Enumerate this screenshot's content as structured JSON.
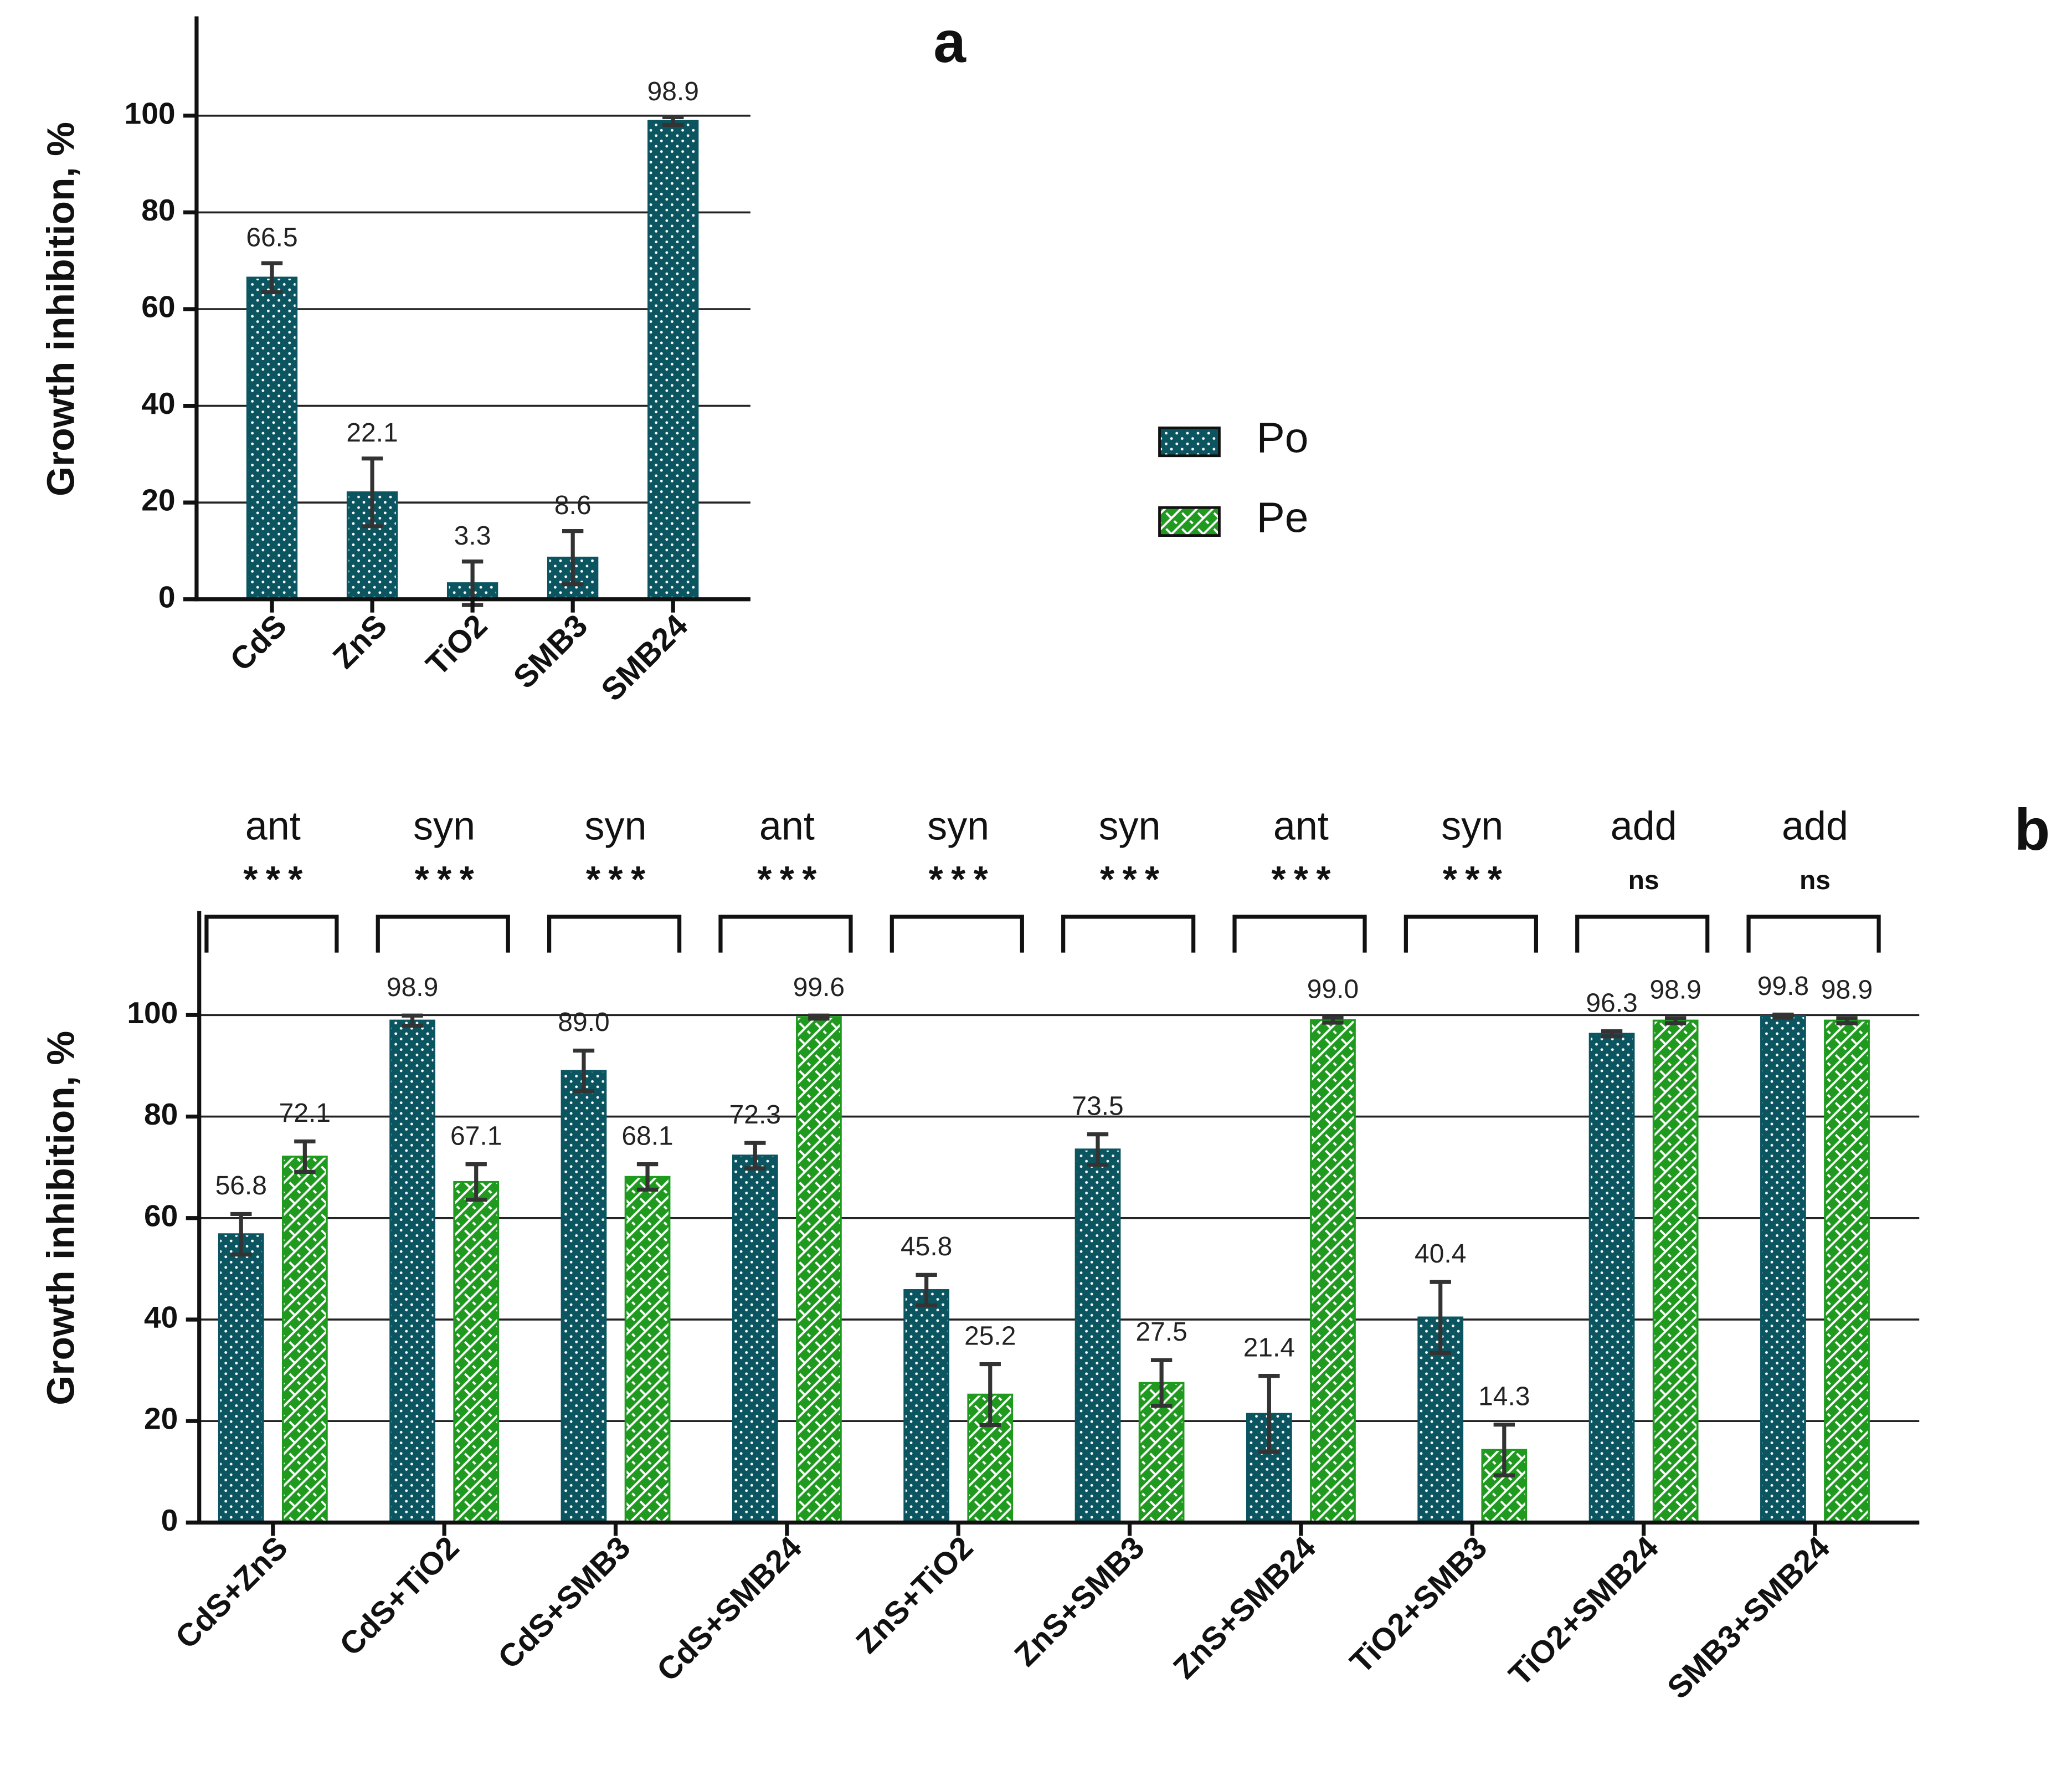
{
  "chart_data": [
    {
      "type": "bar",
      "title": "a",
      "y_label": "Growth inhibition, %",
      "categories": [
        "CdS",
        "ZnS",
        "TiO2",
        "SMB3",
        "SMB24"
      ],
      "values": [
        66.5,
        22.1,
        3.3,
        8.6,
        98.9
      ],
      "errors": [
        3,
        7,
        4.5,
        5.5,
        0.8
      ],
      "color": "#0b5560",
      "pattern": "dots",
      "ylim": [
        0,
        120
      ],
      "yticks": [
        0,
        20,
        40,
        60,
        80,
        100
      ],
      "grid": true
    },
    {
      "type": "grouped_bar",
      "title": "b",
      "y_label": "Growth inhibition, %",
      "categories": [
        "CdS+ZnS",
        "CdS+TiO2",
        "CdS+SMB3",
        "CdS+SMB24",
        "ZnS+TiO2",
        "ZnS+SMB3",
        "ZnS+SMB24",
        "TiO2+SMB3",
        "TiO2+SMB24",
        "SMB3+SMB24"
      ],
      "series": [
        {
          "name": "Po",
          "color": "#0b5560",
          "pattern": "dots",
          "values": [
            56.8,
            98.9,
            89.0,
            72.3,
            45.8,
            73.5,
            21.4,
            40.4,
            96.3,
            99.8
          ],
          "value_labels": [
            "56.8",
            "98.9",
            "89.0",
            "72.3",
            "45.8",
            "73.5",
            "21.4",
            "40.4",
            "96.3",
            "99.8"
          ],
          "errors": [
            4,
            1,
            4,
            2.5,
            3,
            3,
            7.5,
            7,
            0.5,
            0.3
          ]
        },
        {
          "name": "Pe",
          "color": "#1f9a1f",
          "pattern": "hatch",
          "values": [
            72.1,
            67.1,
            68.1,
            99.6,
            25.2,
            27.5,
            99.0,
            14.3,
            98.9,
            98.9
          ],
          "value_labels": [
            "72.1",
            "67.1",
            "68.1",
            "99.6",
            "25.2",
            "27.5",
            "99.0",
            "14.3",
            "98.9",
            "98.9"
          ],
          "errors": [
            3,
            3.5,
            2.5,
            0.3,
            6,
            4.5,
            0.5,
            5,
            0.5,
            0.5
          ]
        }
      ],
      "comparisons": [
        {
          "label": "ant",
          "significance": "***"
        },
        {
          "label": "syn",
          "significance": "***"
        },
        {
          "label": "syn",
          "significance": "***"
        },
        {
          "label": "ant",
          "significance": "***"
        },
        {
          "label": "syn",
          "significance": "***"
        },
        {
          "label": "syn",
          "significance": "***"
        },
        {
          "label": "ant",
          "significance": "***"
        },
        {
          "label": "syn",
          "significance": "***"
        },
        {
          "label": "add",
          "significance": "ns"
        },
        {
          "label": "add",
          "significance": "ns"
        }
      ],
      "ylim": [
        0,
        120
      ],
      "yticks": [
        0,
        20,
        40,
        60,
        80,
        100
      ],
      "grid": true,
      "legend": "right"
    }
  ]
}
